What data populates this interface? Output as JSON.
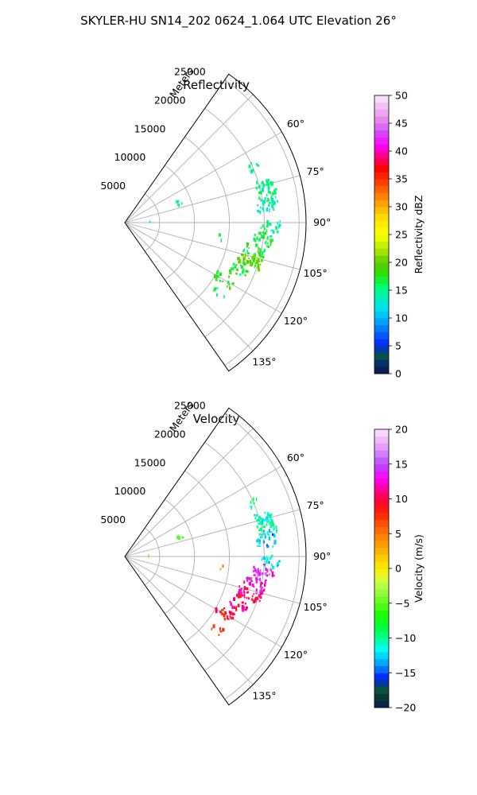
{
  "title": "SKYLER-HU  SN14_202  0624_1.064 UTC Elevation 26°",
  "chart_data": [
    {
      "type": "polar-sector",
      "title": "Reflectivity",
      "radial_axis_label": "Meters",
      "radial_ticks": [
        5000,
        10000,
        15000,
        20000,
        25000
      ],
      "radial_tick_labels": [
        "5000",
        "10000",
        "15000",
        "20000",
        "25000"
      ],
      "rmax": 26000,
      "azimuth_range_deg": [
        35,
        145
      ],
      "azimuth_ticks_deg": [
        60,
        75,
        90,
        105,
        120,
        135
      ],
      "azimuth_tick_labels": [
        "60°",
        "75°",
        "90°",
        "105°",
        "120°",
        "135°"
      ],
      "grid": true,
      "colorbar": {
        "label": "Reflectivity dBZ",
        "range": [
          0,
          50
        ],
        "ticks": [
          0,
          5,
          10,
          15,
          20,
          25,
          30,
          35,
          40,
          45,
          50
        ],
        "tick_labels": [
          "0",
          "5",
          "10",
          "15",
          "20",
          "25",
          "30",
          "35",
          "40",
          "45",
          "50"
        ]
      },
      "echo_clusters": [
        {
          "az": 67,
          "r": [
            19300,
            20800
          ],
          "value": 14,
          "n": 8
        },
        {
          "az": 75,
          "r": [
            19500,
            22000
          ],
          "value": 15,
          "n": 32
        },
        {
          "az": 80,
          "r": [
            19500,
            22200
          ],
          "value": 15,
          "n": 30
        },
        {
          "az": 84,
          "r": [
            19000,
            21800
          ],
          "value": 14,
          "n": 18
        },
        {
          "az": 92,
          "r": [
            19500,
            22500
          ],
          "value": 15,
          "n": 18
        },
        {
          "az": 96,
          "r": [
            18500,
            21500
          ],
          "value": 16,
          "n": 26
        },
        {
          "az": 102,
          "r": [
            17500,
            21000
          ],
          "value": 17,
          "n": 30
        },
        {
          "az": 107,
          "r": [
            17000,
            20500
          ],
          "value": 20,
          "n": 45
        },
        {
          "az": 113,
          "r": [
            16500,
            19000
          ],
          "value": 17,
          "n": 20
        },
        {
          "az": 120,
          "r": [
            15000,
            18000
          ],
          "value": 18,
          "n": 22
        },
        {
          "az": 128,
          "r": [
            16000,
            18000
          ],
          "value": 15,
          "n": 6
        },
        {
          "az": 70,
          "r": [
            8000,
            8800
          ],
          "value": 14,
          "n": 5
        },
        {
          "az": 98,
          "r": [
            13500,
            14200
          ],
          "value": 14,
          "n": 2
        },
        {
          "az": 87,
          "r": [
            3400,
            3700
          ],
          "value": 12,
          "n": 1
        }
      ]
    },
    {
      "type": "polar-sector",
      "title": "Velocity",
      "radial_axis_label": "Meters",
      "radial_ticks": [
        5000,
        10000,
        15000,
        20000,
        25000
      ],
      "radial_tick_labels": [
        "5000",
        "10000",
        "15000",
        "20000",
        "25000"
      ],
      "rmax": 26000,
      "azimuth_range_deg": [
        35,
        145
      ],
      "azimuth_ticks_deg": [
        60,
        75,
        90,
        105,
        120,
        135
      ],
      "azimuth_tick_labels": [
        "60°",
        "75°",
        "90°",
        "105°",
        "120°",
        "135°"
      ],
      "grid": true,
      "colorbar": {
        "label": "Velocity (m/s)",
        "range": [
          -20,
          20
        ],
        "ticks": [
          -20,
          -15,
          -10,
          -5,
          0,
          5,
          10,
          15,
          20
        ],
        "tick_labels": [
          "−20",
          "−15",
          "−10",
          "−5",
          "0",
          "5",
          "10",
          "15",
          "20"
        ]
      },
      "echo_clusters": [
        {
          "az": 67,
          "r": [
            19300,
            20800
          ],
          "value": -10,
          "n": 8
        },
        {
          "az": 75,
          "r": [
            19500,
            22000
          ],
          "value": -11,
          "n": 32
        },
        {
          "az": 80,
          "r": [
            19500,
            22200
          ],
          "value": -11,
          "n": 30
        },
        {
          "az": 84,
          "r": [
            19000,
            21800
          ],
          "value": -13,
          "n": 18
        },
        {
          "az": 92,
          "r": [
            19500,
            22500
          ],
          "value": -12,
          "n": 18
        },
        {
          "az": 96,
          "r": [
            18500,
            21500
          ],
          "value": 14,
          "n": 26
        },
        {
          "az": 102,
          "r": [
            17500,
            21000
          ],
          "value": 13,
          "n": 30
        },
        {
          "az": 107,
          "r": [
            17000,
            20500
          ],
          "value": 10,
          "n": 45
        },
        {
          "az": 113,
          "r": [
            16500,
            19000
          ],
          "value": 11,
          "n": 20
        },
        {
          "az": 120,
          "r": [
            15000,
            18000
          ],
          "value": 9,
          "n": 22
        },
        {
          "az": 128,
          "r": [
            16000,
            18000
          ],
          "value": 6,
          "n": 6
        },
        {
          "az": 70,
          "r": [
            8000,
            8800
          ],
          "value": -4,
          "n": 5
        },
        {
          "az": 98,
          "r": [
            13500,
            14200
          ],
          "value": 3,
          "n": 2
        },
        {
          "az": 87,
          "r": [
            3400,
            3700
          ],
          "value": 1,
          "n": 1
        }
      ]
    }
  ]
}
